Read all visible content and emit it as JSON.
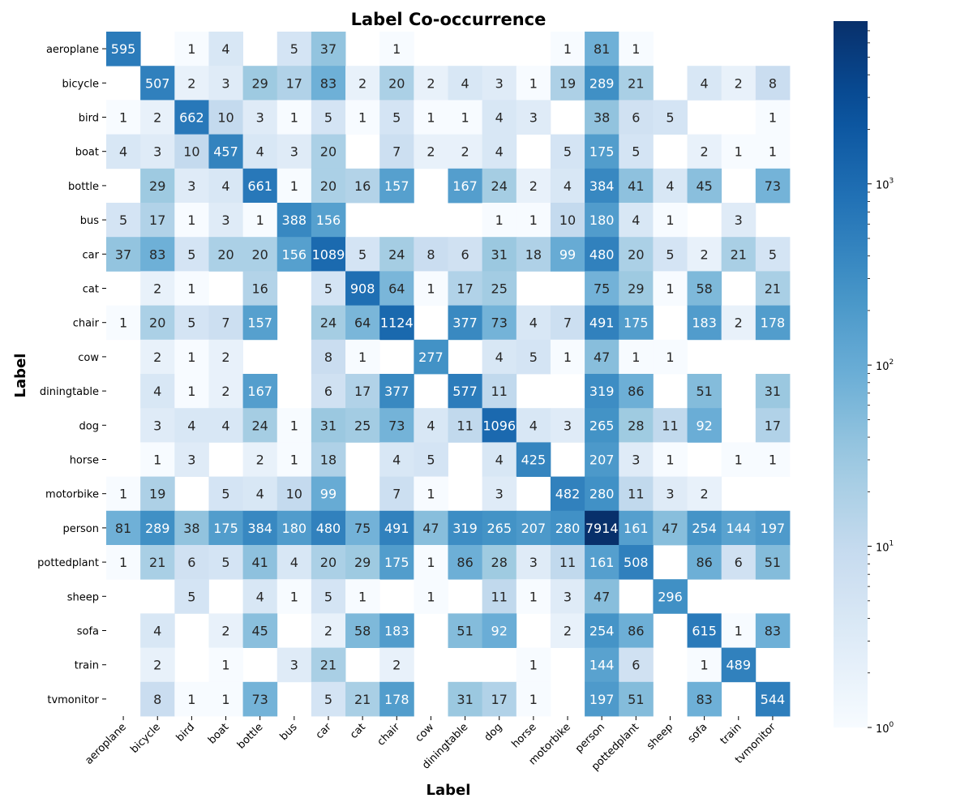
{
  "chart_data": {
    "type": "heatmap",
    "title": "Label Co-occurrence",
    "xlabel": "Label",
    "ylabel": "Label",
    "categories": [
      "aeroplane",
      "bicycle",
      "bird",
      "boat",
      "bottle",
      "bus",
      "car",
      "cat",
      "chair",
      "cow",
      "diningtable",
      "dog",
      "horse",
      "motorbike",
      "person",
      "pottedplant",
      "sheep",
      "sofa",
      "train",
      "tvmonitor"
    ],
    "matrix": [
      [
        595,
        0,
        1,
        4,
        0,
        5,
        37,
        0,
        1,
        0,
        0,
        0,
        0,
        1,
        81,
        1,
        0,
        0,
        0,
        0
      ],
      [
        0,
        507,
        2,
        3,
        29,
        17,
        83,
        2,
        20,
        2,
        4,
        3,
        1,
        19,
        289,
        21,
        0,
        4,
        2,
        8
      ],
      [
        1,
        2,
        662,
        10,
        3,
        1,
        5,
        1,
        5,
        1,
        1,
        4,
        3,
        0,
        38,
        6,
        5,
        0,
        0,
        1
      ],
      [
        4,
        3,
        10,
        457,
        4,
        3,
        20,
        0,
        7,
        2,
        2,
        4,
        0,
        5,
        175,
        5,
        0,
        2,
        1,
        1
      ],
      [
        0,
        29,
        3,
        4,
        661,
        1,
        20,
        16,
        157,
        0,
        167,
        24,
        2,
        4,
        384,
        41,
        4,
        45,
        0,
        73
      ],
      [
        5,
        17,
        1,
        3,
        1,
        388,
        156,
        0,
        0,
        0,
        0,
        1,
        1,
        10,
        180,
        4,
        1,
        0,
        3,
        0
      ],
      [
        37,
        83,
        5,
        20,
        20,
        156,
        1089,
        5,
        24,
        8,
        6,
        31,
        18,
        99,
        480,
        20,
        5,
        2,
        21,
        5
      ],
      [
        0,
        2,
        1,
        0,
        16,
        0,
        5,
        908,
        64,
        1,
        17,
        25,
        0,
        0,
        75,
        29,
        1,
        58,
        0,
        21
      ],
      [
        1,
        20,
        5,
        7,
        157,
        0,
        24,
        64,
        1124,
        0,
        377,
        73,
        4,
        7,
        491,
        175,
        0,
        183,
        2,
        178
      ],
      [
        0,
        2,
        1,
        2,
        0,
        0,
        8,
        1,
        0,
        277,
        0,
        4,
        5,
        1,
        47,
        1,
        1,
        0,
        0,
        0
      ],
      [
        0,
        4,
        1,
        2,
        167,
        0,
        6,
        17,
        377,
        0,
        577,
        11,
        0,
        0,
        319,
        86,
        0,
        51,
        0,
        31
      ],
      [
        0,
        3,
        4,
        4,
        24,
        1,
        31,
        25,
        73,
        4,
        11,
        1096,
        4,
        3,
        265,
        28,
        11,
        92,
        0,
        17
      ],
      [
        0,
        1,
        3,
        0,
        2,
        1,
        18,
        0,
        4,
        5,
        0,
        4,
        425,
        0,
        207,
        3,
        1,
        0,
        1,
        1
      ],
      [
        1,
        19,
        0,
        5,
        4,
        10,
        99,
        0,
        7,
        1,
        0,
        3,
        0,
        482,
        280,
        11,
        3,
        2,
        0,
        0
      ],
      [
        81,
        289,
        38,
        175,
        384,
        180,
        480,
        75,
        491,
        47,
        319,
        265,
        207,
        280,
        7914,
        161,
        47,
        254,
        144,
        197
      ],
      [
        1,
        21,
        6,
        5,
        41,
        4,
        20,
        29,
        175,
        1,
        86,
        28,
        3,
        11,
        161,
        508,
        0,
        86,
        6,
        51
      ],
      [
        0,
        0,
        5,
        0,
        4,
        1,
        5,
        1,
        0,
        1,
        0,
        11,
        1,
        3,
        47,
        0,
        296,
        0,
        0,
        0
      ],
      [
        0,
        4,
        0,
        2,
        45,
        0,
        2,
        58,
        183,
        0,
        51,
        92,
        0,
        2,
        254,
        86,
        0,
        615,
        1,
        83
      ],
      [
        0,
        2,
        0,
        1,
        0,
        3,
        21,
        0,
        2,
        0,
        0,
        0,
        1,
        0,
        144,
        6,
        0,
        1,
        489,
        0
      ],
      [
        0,
        8,
        1,
        1,
        73,
        0,
        5,
        21,
        178,
        0,
        31,
        17,
        1,
        0,
        197,
        51,
        0,
        83,
        0,
        544
      ]
    ],
    "scale": "log",
    "colormap": "Blues",
    "colorbar_range": [
      1,
      7914
    ],
    "colorbar_ticks": [
      {
        "base": "10",
        "exp": "0",
        "value": 1
      },
      {
        "base": "10",
        "exp": "1",
        "value": 10
      },
      {
        "base": "10",
        "exp": "2",
        "value": 100
      },
      {
        "base": "10",
        "exp": "3",
        "value": 1000
      }
    ],
    "legend": "colorbar-right"
  }
}
